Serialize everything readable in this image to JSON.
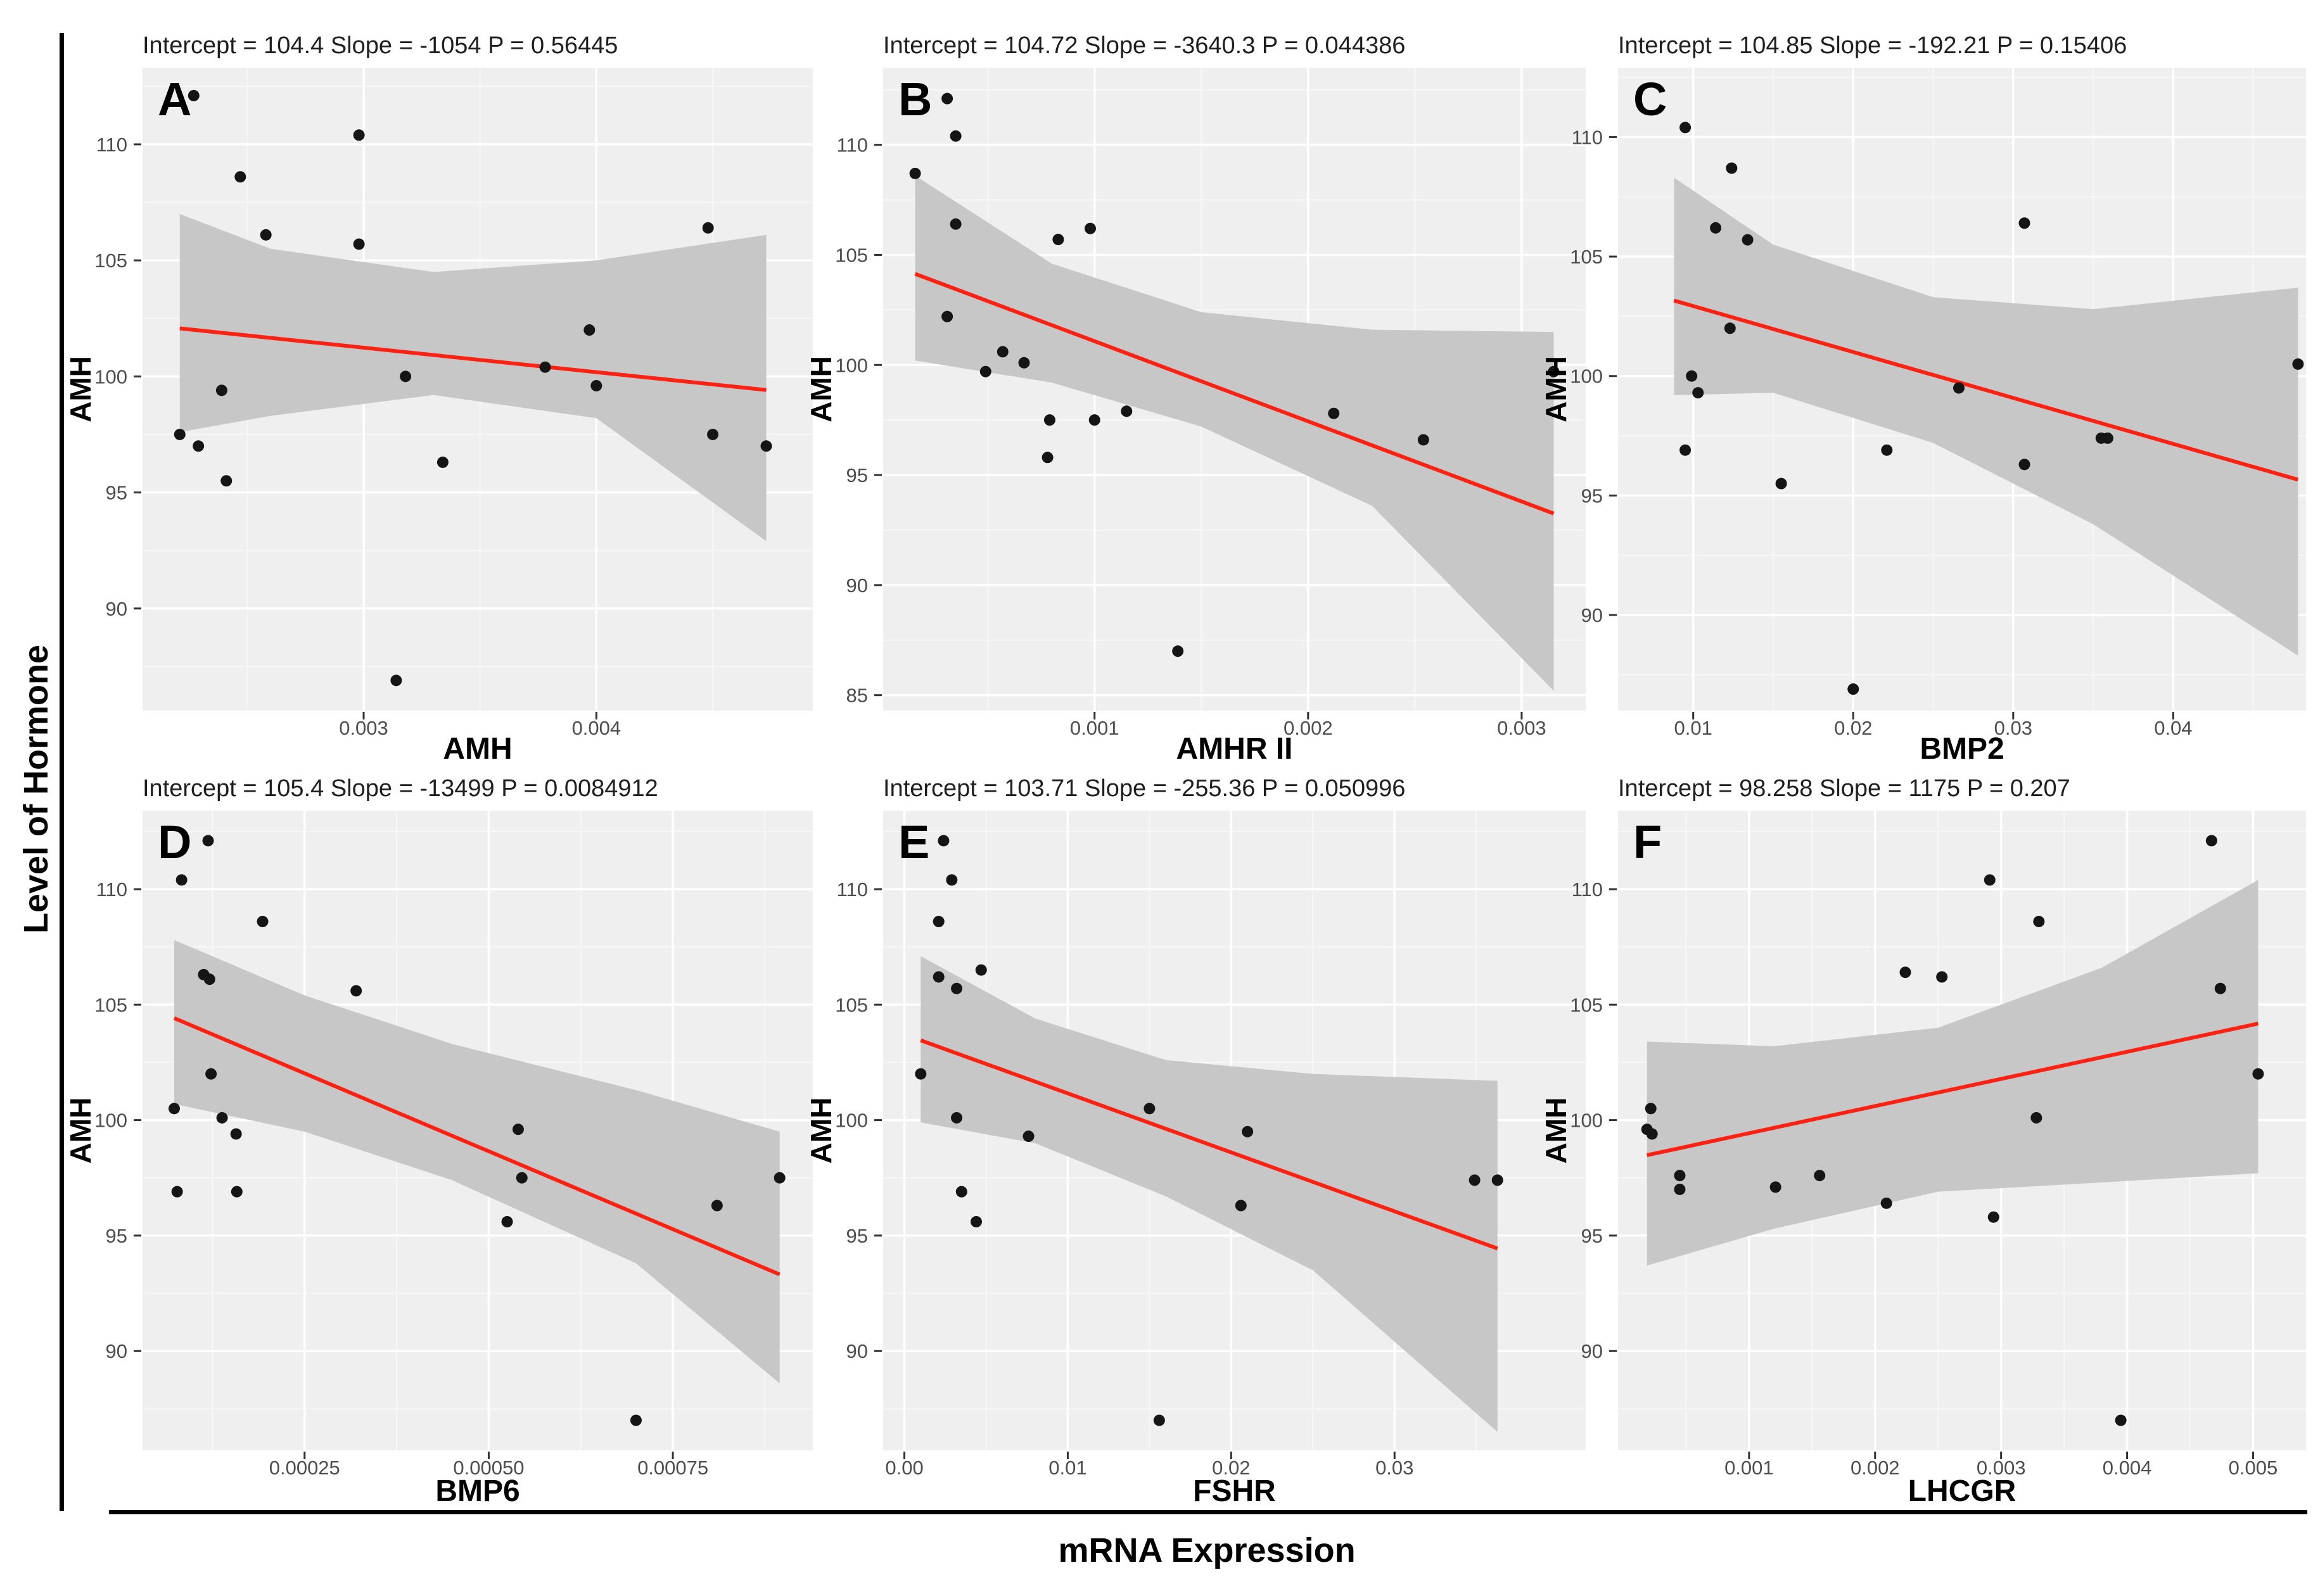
{
  "figure": {
    "shared_y_label": "Level of Hormone",
    "shared_x_label": "mRNA Expression",
    "inner_y_label": "AMH"
  },
  "colors": {
    "panel_bg": "#efefef",
    "grid_major": "#ffffff",
    "grid_minor": "#f7f7f7",
    "confidence_band": "#c7c7c7",
    "regression_line": "#fa2213",
    "point": "#151515",
    "tick_label": "#4d4d4d",
    "title_text": "#1f1f1f",
    "axis_text": "#000000"
  },
  "chart_data": [
    {
      "type": "scatter",
      "letter": "A",
      "title": "Intercept = 104.4  Slope = -1054  P = 0.56445",
      "intercept": 104.4,
      "slope": -1054,
      "p_value": 0.56445,
      "xlabel": "AMH",
      "ylabel": "AMH",
      "xlim": [
        0.00205,
        0.00493
      ],
      "xticks": [
        0.003,
        0.004
      ],
      "xtick_labels": [
        "0.003",
        "0.004"
      ],
      "ylim": [
        85.6,
        113.3
      ],
      "yticks": [
        90,
        95,
        100,
        105,
        110
      ],
      "points": [
        [
          0.00227,
          112.1
        ],
        [
          0.00298,
          110.4
        ],
        [
          0.00247,
          108.6
        ],
        [
          0.00258,
          106.1
        ],
        [
          0.00298,
          105.7
        ],
        [
          0.00448,
          106.4
        ],
        [
          0.00397,
          102.0
        ],
        [
          0.00378,
          100.4
        ],
        [
          0.004,
          99.6
        ],
        [
          0.00318,
          100.0
        ],
        [
          0.00239,
          99.4
        ],
        [
          0.00221,
          97.5
        ],
        [
          0.00229,
          97.0
        ],
        [
          0.0045,
          97.5
        ],
        [
          0.00473,
          97.0
        ],
        [
          0.00334,
          96.3
        ],
        [
          0.00241,
          95.5
        ],
        [
          0.00314,
          86.9
        ]
      ],
      "band": [
        [
          0.00221,
          97.6,
          107.0
        ],
        [
          0.0026,
          98.3,
          105.5
        ],
        [
          0.0033,
          99.2,
          104.5
        ],
        [
          0.004,
          98.2,
          105.0
        ],
        [
          0.00473,
          92.9,
          106.1
        ]
      ]
    },
    {
      "type": "scatter",
      "letter": "B",
      "title": "Intercept = 104.72  Slope = -3640.3  P = 0.044386",
      "intercept": 104.72,
      "slope": -3640.3,
      "p_value": 0.044386,
      "xlabel": "AMHR II",
      "ylabel": "AMH",
      "xlim": [
        1e-05,
        0.0033
      ],
      "xticks": [
        0.001,
        0.002,
        0.003
      ],
      "xtick_labels": [
        "0.001",
        "0.002",
        "0.003"
      ],
      "ylim": [
        84.3,
        113.5
      ],
      "yticks": [
        85,
        90,
        95,
        100,
        105,
        110
      ],
      "points": [
        [
          0.00031,
          112.1
        ],
        [
          0.00035,
          110.4
        ],
        [
          0.00016,
          108.7
        ],
        [
          0.00035,
          106.4
        ],
        [
          0.00083,
          105.7
        ],
        [
          0.00098,
          106.2
        ],
        [
          0.00031,
          102.2
        ],
        [
          0.00057,
          100.6
        ],
        [
          0.00067,
          100.1
        ],
        [
          0.00049,
          99.7
        ],
        [
          0.00115,
          97.9
        ],
        [
          0.00079,
          97.5
        ],
        [
          0.001,
          97.5
        ],
        [
          0.00078,
          95.8
        ],
        [
          0.00212,
          97.8
        ],
        [
          0.00254,
          96.6
        ],
        [
          0.00315,
          99.7
        ],
        [
          0.00139,
          87.0
        ]
      ],
      "band": [
        [
          0.00016,
          100.2,
          108.6
        ],
        [
          0.0008,
          99.2,
          104.6
        ],
        [
          0.0015,
          97.2,
          102.4
        ],
        [
          0.0023,
          93.6,
          101.6
        ],
        [
          0.00315,
          85.2,
          101.5
        ]
      ]
    },
    {
      "type": "scatter",
      "letter": "C",
      "title": "Intercept = 104.85  Slope = -192.21  P = 0.15406",
      "intercept": 104.85,
      "slope": -192.21,
      "p_value": 0.15406,
      "xlabel": "BMP2",
      "ylabel": "AMH",
      "xlim": [
        0.0053,
        0.0483
      ],
      "xticks": [
        0.01,
        0.02,
        0.03,
        0.04
      ],
      "xtick_labels": [
        "0.01",
        "0.02",
        "0.03",
        "0.04"
      ],
      "ylim": [
        86.0,
        112.9
      ],
      "yticks": [
        90,
        95,
        100,
        105,
        110
      ],
      "points": [
        [
          0.0095,
          110.4
        ],
        [
          0.0124,
          108.7
        ],
        [
          0.0114,
          106.2
        ],
        [
          0.0134,
          105.7
        ],
        [
          0.0307,
          106.4
        ],
        [
          0.0123,
          102.0
        ],
        [
          0.0099,
          100.0
        ],
        [
          0.0103,
          99.3
        ],
        [
          0.0266,
          99.5
        ],
        [
          0.0095,
          96.9
        ],
        [
          0.0221,
          96.9
        ],
        [
          0.0355,
          97.4
        ],
        [
          0.0359,
          97.4
        ],
        [
          0.0478,
          100.5
        ],
        [
          0.0307,
          96.3
        ],
        [
          0.0155,
          95.5
        ],
        [
          0.02,
          86.9
        ]
      ],
      "band": [
        [
          0.0088,
          99.2,
          108.3
        ],
        [
          0.015,
          99.3,
          105.5
        ],
        [
          0.025,
          97.2,
          103.3
        ],
        [
          0.035,
          93.8,
          102.8
        ],
        [
          0.0478,
          88.3,
          103.7
        ]
      ]
    },
    {
      "type": "scatter",
      "letter": "D",
      "title": "Intercept = 105.4  Slope = -13499  P = 0.0084912",
      "intercept": 105.4,
      "slope": -13499,
      "p_value": 0.0084912,
      "xlabel": "BMP6",
      "ylabel": "AMH",
      "xlim": [
        3e-05,
        0.00094
      ],
      "xticks": [
        0.00025,
        0.0005,
        0.00075
      ],
      "xtick_labels": [
        "0.00025",
        "0.00050",
        "0.00075"
      ],
      "ylim": [
        85.7,
        113.4
      ],
      "yticks": [
        90,
        95,
        100,
        105,
        110
      ],
      "points": [
        [
          0.000119,
          112.1
        ],
        [
          8.3e-05,
          110.4
        ],
        [
          0.000193,
          108.6
        ],
        [
          0.000113,
          106.3
        ],
        [
          0.000121,
          106.1
        ],
        [
          0.00032,
          105.6
        ],
        [
          0.000123,
          102.0
        ],
        [
          7.3e-05,
          100.5
        ],
        [
          0.000138,
          100.1
        ],
        [
          0.000157,
          99.4
        ],
        [
          7.7e-05,
          96.9
        ],
        [
          0.000158,
          96.9
        ],
        [
          0.00054,
          99.6
        ],
        [
          0.000545,
          97.5
        ],
        [
          0.000525,
          95.6
        ],
        [
          0.00081,
          96.3
        ],
        [
          0.000895,
          97.5
        ],
        [
          0.0007,
          87.0
        ]
      ],
      "band": [
        [
          7.3e-05,
          100.7,
          107.8
        ],
        [
          0.00025,
          99.5,
          105.4
        ],
        [
          0.00045,
          97.4,
          103.3
        ],
        [
          0.0007,
          93.8,
          101.3
        ],
        [
          0.000895,
          88.6,
          99.5
        ]
      ]
    },
    {
      "type": "scatter",
      "letter": "E",
      "title": "Intercept = 103.71  Slope = -255.36  P = 0.050996",
      "intercept": 103.71,
      "slope": -255.36,
      "p_value": 0.050996,
      "xlabel": "FSHR",
      "ylabel": "AMH",
      "xlim": [
        -0.0013,
        0.0417
      ],
      "xticks": [
        0.0,
        0.01,
        0.02,
        0.03
      ],
      "xtick_labels": [
        "0.00",
        "0.01",
        "0.02",
        "0.03"
      ],
      "ylim": [
        85.7,
        113.4
      ],
      "yticks": [
        90,
        95,
        100,
        105,
        110
      ],
      "points": [
        [
          0.0024,
          112.1
        ],
        [
          0.0029,
          110.4
        ],
        [
          0.0021,
          108.6
        ],
        [
          0.0021,
          106.2
        ],
        [
          0.0032,
          105.7
        ],
        [
          0.0047,
          106.5
        ],
        [
          0.001,
          102.0
        ],
        [
          0.015,
          100.5
        ],
        [
          0.0032,
          100.1
        ],
        [
          0.0076,
          99.3
        ],
        [
          0.021,
          99.5
        ],
        [
          0.0349,
          97.4
        ],
        [
          0.0363,
          97.4
        ],
        [
          0.0035,
          96.9
        ],
        [
          0.0206,
          96.3
        ],
        [
          0.0044,
          95.6
        ],
        [
          0.0156,
          87.0
        ]
      ],
      "band": [
        [
          0.001,
          99.9,
          107.1
        ],
        [
          0.008,
          99.0,
          104.4
        ],
        [
          0.016,
          96.7,
          102.6
        ],
        [
          0.025,
          93.5,
          102.0
        ],
        [
          0.0363,
          86.5,
          101.7
        ]
      ]
    },
    {
      "type": "scatter",
      "letter": "F",
      "title": "Intercept = 98.258  Slope = 1175  P = 0.207",
      "intercept": 98.258,
      "slope": 1175,
      "p_value": 0.207,
      "xlabel": "LHCGR",
      "ylabel": "AMH",
      "xlim": [
        -4e-05,
        0.00542
      ],
      "xticks": [
        0.001,
        0.002,
        0.003,
        0.004,
        0.005
      ],
      "xtick_labels": [
        "0.001",
        "0.002",
        "0.003",
        "0.004",
        "0.005"
      ],
      "ylim": [
        85.7,
        113.4
      ],
      "yticks": [
        90,
        95,
        100,
        105,
        110
      ],
      "points": [
        [
          0.00467,
          112.1
        ],
        [
          0.00291,
          110.4
        ],
        [
          0.0033,
          108.6
        ],
        [
          0.00224,
          106.4
        ],
        [
          0.00253,
          106.2
        ],
        [
          0.00474,
          105.7
        ],
        [
          0.00504,
          102.0
        ],
        [
          0.00022,
          100.5
        ],
        [
          0.00328,
          100.1
        ],
        [
          0.00019,
          99.6
        ],
        [
          0.00023,
          99.4
        ],
        [
          0.00045,
          97.6
        ],
        [
          0.00045,
          97.0
        ],
        [
          0.00156,
          97.6
        ],
        [
          0.00121,
          97.1
        ],
        [
          0.00209,
          96.4
        ],
        [
          0.00294,
          95.8
        ],
        [
          0.00395,
          87.0
        ]
      ],
      "band": [
        [
          0.00019,
          93.7,
          103.4
        ],
        [
          0.0012,
          95.3,
          103.2
        ],
        [
          0.0025,
          96.9,
          104.0
        ],
        [
          0.0038,
          97.3,
          106.6
        ],
        [
          0.00504,
          97.7,
          110.4
        ]
      ]
    }
  ]
}
